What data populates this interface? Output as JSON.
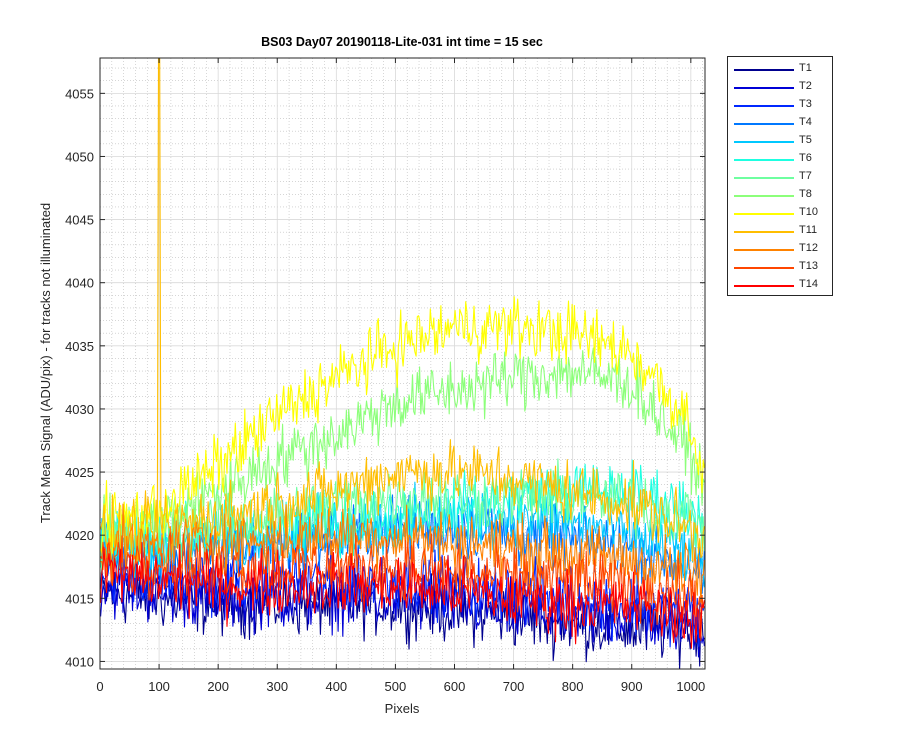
{
  "chart_data": {
    "type": "line",
    "title": "BS03 Day07 20190118-Lite-031 int time = 15 sec",
    "xlabel": "Pixels",
    "ylabel": "Track Mean Signal (ADU/pix) - for tracks not illuminated",
    "xlim": [
      0,
      1024
    ],
    "ylim": [
      4009.4,
      4057.8
    ],
    "xticks": [
      0,
      100,
      200,
      300,
      400,
      500,
      600,
      700,
      800,
      900,
      1000
    ],
    "yticks": [
      4010,
      4015,
      4020,
      4025,
      4030,
      4035,
      4040,
      4045,
      4050,
      4055
    ],
    "grid": true,
    "minor_grid": true,
    "legend_position": "outside-right",
    "noise_note_excluded": true,
    "series": [
      {
        "name": "T1",
        "color": "#00008f",
        "x": [
          0,
          100,
          200,
          300,
          400,
          500,
          600,
          700,
          800,
          900,
          1000,
          1024
        ],
        "y": [
          4015.5,
          4015.0,
          4014.5,
          4014.5,
          4014.5,
          4014.5,
          4014.0,
          4013.5,
          4013.0,
          4012.5,
          4012.5,
          4012.0
        ]
      },
      {
        "name": "T2",
        "color": "#0000d6",
        "x": [
          0,
          100,
          200,
          300,
          400,
          500,
          600,
          700,
          800,
          900,
          1000,
          1024
        ],
        "y": [
          4016.0,
          4015.5,
          4015.0,
          4015.0,
          4015.0,
          4015.0,
          4014.5,
          4014.0,
          4013.5,
          4013.5,
          4013.0,
          4012.5
        ]
      },
      {
        "name": "T3",
        "color": "#0028ff",
        "x": [
          0,
          100,
          200,
          300,
          400,
          500,
          600,
          700,
          800,
          900,
          1000,
          1024
        ],
        "y": [
          4017.0,
          4016.5,
          4016.5,
          4016.5,
          4016.5,
          4016.5,
          4016.0,
          4015.5,
          4015.0,
          4014.5,
          4014.0,
          4013.5
        ]
      },
      {
        "name": "T4",
        "color": "#0078ff",
        "x": [
          0,
          100,
          200,
          300,
          400,
          500,
          600,
          700,
          800,
          900,
          1000,
          1024
        ],
        "y": [
          4018.5,
          4018.5,
          4019.0,
          4019.5,
          4020.0,
          4020.5,
          4020.5,
          4020.0,
          4019.5,
          4019.0,
          4017.5,
          4016.5
        ]
      },
      {
        "name": "T5",
        "color": "#00c8ff",
        "x": [
          0,
          100,
          200,
          300,
          400,
          500,
          600,
          700,
          800,
          900,
          1000,
          1024
        ],
        "y": [
          4019.0,
          4019.0,
          4019.5,
          4020.0,
          4020.5,
          4021.0,
          4021.5,
          4021.5,
          4021.0,
          4020.0,
          4018.5,
          4017.5
        ]
      },
      {
        "name": "T6",
        "color": "#1effe1",
        "x": [
          0,
          100,
          200,
          300,
          400,
          500,
          600,
          700,
          800,
          900,
          1000,
          1024
        ],
        "y": [
          4019.0,
          4019.5,
          4020.0,
          4020.5,
          4021.0,
          4021.5,
          4022.0,
          4023.0,
          4023.5,
          4023.5,
          4022.0,
          4021.0
        ]
      },
      {
        "name": "T7",
        "color": "#6effa0",
        "x": [
          0,
          100,
          200,
          300,
          400,
          500,
          600,
          700,
          800,
          900,
          1000,
          1024
        ],
        "y": [
          4019.5,
          4020.0,
          4021.0,
          4021.5,
          4022.5,
          4023.0,
          4023.0,
          4023.0,
          4023.0,
          4022.5,
          4021.5,
          4020.5
        ]
      },
      {
        "name": "T8",
        "color": "#8cff7a",
        "x": [
          0,
          100,
          200,
          300,
          400,
          500,
          600,
          700,
          800,
          900,
          1000,
          1024
        ],
        "y": [
          4020.0,
          4021.0,
          4023.5,
          4026.0,
          4028.0,
          4030.5,
          4031.5,
          4032.5,
          4033.0,
          4032.0,
          4026.5,
          4023.5
        ]
      },
      {
        "name": "T10",
        "color": "#ffff00",
        "x": [
          0,
          100,
          200,
          300,
          400,
          500,
          600,
          700,
          800,
          900,
          1000,
          1024
        ],
        "y": [
          4021.0,
          4022.0,
          4025.5,
          4029.5,
          4032.5,
          4035.0,
          4036.5,
          4036.5,
          4036.0,
          4034.5,
          4029.0,
          4024.0
        ]
      },
      {
        "name": "T11",
        "color": "#ffbe00",
        "x": [
          0,
          100,
          200,
          300,
          400,
          500,
          600,
          700,
          800,
          900,
          1000,
          1024
        ],
        "y": [
          4020.0,
          4020.5,
          4021.5,
          4022.5,
          4023.5,
          4025.0,
          4025.0,
          4024.5,
          4023.5,
          4022.5,
          4020.5,
          4019.5
        ]
      },
      {
        "name": "T12",
        "color": "#ff8200",
        "x": [
          0,
          100,
          200,
          300,
          400,
          500,
          600,
          700,
          800,
          900,
          1000,
          1024
        ],
        "y": [
          4019.0,
          4019.0,
          4019.5,
          4019.5,
          4020.0,
          4020.0,
          4019.5,
          4019.0,
          4018.5,
          4018.0,
          4017.0,
          4016.5
        ]
      },
      {
        "name": "T13",
        "color": "#ff4600",
        "x": [
          0,
          100,
          200,
          300,
          400,
          500,
          600,
          700,
          800,
          900,
          1000,
          1024
        ],
        "y": [
          4018.0,
          4018.0,
          4017.5,
          4017.5,
          4017.5,
          4017.5,
          4017.0,
          4016.5,
          4016.5,
          4016.0,
          4015.0,
          4014.5
        ]
      },
      {
        "name": "T14",
        "color": "#ff0000",
        "x": [
          0,
          100,
          200,
          300,
          400,
          500,
          600,
          700,
          800,
          900,
          1000,
          1024
        ],
        "y": [
          4017.0,
          4016.5,
          4016.0,
          4016.0,
          4016.0,
          4016.0,
          4015.5,
          4015.0,
          4014.5,
          4014.5,
          4013.5,
          4013.0
        ]
      }
    ],
    "annotations": [
      {
        "series": "T11",
        "feature": "spike",
        "x_range": [
          98,
          102
        ],
        "y_peak": 4057.8
      }
    ]
  }
}
